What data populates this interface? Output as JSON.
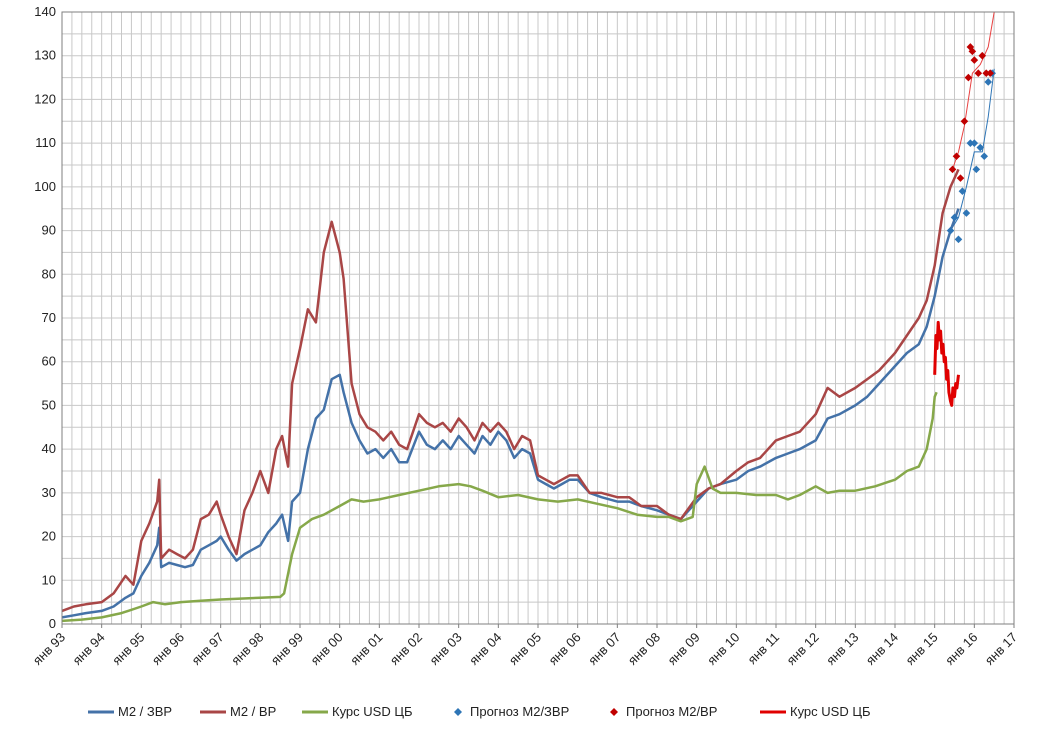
{
  "chart_data": {
    "type": "line",
    "title": "",
    "xlabel": "",
    "ylabel": "",
    "ylim": [
      0,
      140
    ],
    "yticks": [
      0,
      10,
      20,
      30,
      40,
      50,
      60,
      70,
      80,
      90,
      100,
      110,
      120,
      130,
      140
    ],
    "xlim": [
      1993.0,
      2017.0
    ],
    "xtick_labels": [
      "янв 93",
      "янв 94",
      "янв 95",
      "янв 96",
      "янв 97",
      "янв 98",
      "янв 99",
      "янв 00",
      "янв 01",
      "янв 02",
      "янв 03",
      "янв 04",
      "янв 05",
      "янв 06",
      "янв 07",
      "янв 08",
      "янв 09",
      "янв 10",
      "янв 11",
      "янв 12",
      "янв 13",
      "янв 14",
      "янв 15",
      "янв 16",
      "янв 17"
    ],
    "grid": true,
    "legend_position": "bottom",
    "series": [
      {
        "name": "М2 / ЗВР",
        "kind": "line",
        "color": "#4472a8",
        "x": [
          1993.0,
          1993.3,
          1993.6,
          1994.0,
          1994.3,
          1994.6,
          1994.8,
          1995.0,
          1995.2,
          1995.4,
          1995.45,
          1995.5,
          1995.7,
          1995.9,
          1996.1,
          1996.3,
          1996.5,
          1996.7,
          1996.9,
          1997.0,
          1997.2,
          1997.4,
          1997.6,
          1997.8,
          1998.0,
          1998.2,
          1998.4,
          1998.55,
          1998.7,
          1998.8,
          1999.0,
          1999.2,
          1999.4,
          1999.6,
          1999.8,
          2000.0,
          2000.1,
          2000.3,
          2000.5,
          2000.7,
          2000.9,
          2001.1,
          2001.3,
          2001.5,
          2001.7,
          2002.0,
          2002.2,
          2002.4,
          2002.6,
          2002.8,
          2003.0,
          2003.2,
          2003.4,
          2003.6,
          2003.8,
          2004.0,
          2004.2,
          2004.4,
          2004.6,
          2004.8,
          2005.0,
          2005.2,
          2005.4,
          2005.6,
          2005.8,
          2006.0,
          2006.3,
          2006.6,
          2007.0,
          2007.3,
          2007.6,
          2008.0,
          2008.3,
          2008.6,
          2009.0,
          2009.3,
          2009.6,
          2010.0,
          2010.3,
          2010.6,
          2011.0,
          2011.3,
          2011.6,
          2012.0,
          2012.3,
          2012.6,
          2013.0,
          2013.3,
          2013.6,
          2014.0,
          2014.3,
          2014.6,
          2014.8,
          2015.0,
          2015.2,
          2015.4,
          2015.6
        ],
        "y": [
          1.5,
          2,
          2.5,
          3,
          4,
          6,
          7,
          11,
          14,
          18,
          22,
          13,
          14,
          13.5,
          13,
          13.5,
          17,
          18,
          19,
          20,
          17,
          14.5,
          16,
          17,
          18,
          21,
          23,
          25,
          19,
          28,
          30,
          40,
          47,
          49,
          56,
          57,
          53,
          46,
          42,
          39,
          40,
          38,
          40,
          37,
          37,
          44,
          41,
          40,
          42,
          40,
          43,
          41,
          39,
          43,
          41,
          44,
          42,
          38,
          40,
          39,
          33,
          32,
          31,
          32,
          33,
          33,
          30,
          29,
          28,
          28,
          27,
          26,
          25,
          24,
          28,
          31,
          32,
          33,
          35,
          36,
          38,
          39,
          40,
          42,
          47,
          48,
          50,
          52,
          55,
          59,
          62,
          64,
          68,
          75,
          84,
          90,
          95
        ]
      },
      {
        "name": "М2 / ВР",
        "kind": "line",
        "color": "#a94646",
        "x": [
          1993.0,
          1993.3,
          1993.6,
          1994.0,
          1994.3,
          1994.6,
          1994.8,
          1995.0,
          1995.2,
          1995.4,
          1995.45,
          1995.5,
          1995.7,
          1995.9,
          1996.1,
          1996.3,
          1996.5,
          1996.7,
          1996.9,
          1997.0,
          1997.2,
          1997.4,
          1997.6,
          1997.8,
          1998.0,
          1998.2,
          1998.4,
          1998.55,
          1998.7,
          1998.8,
          1999.0,
          1999.2,
          1999.4,
          1999.6,
          1999.8,
          2000.0,
          2000.1,
          2000.3,
          2000.5,
          2000.7,
          2000.9,
          2001.1,
          2001.3,
          2001.5,
          2001.7,
          2002.0,
          2002.2,
          2002.4,
          2002.6,
          2002.8,
          2003.0,
          2003.2,
          2003.4,
          2003.6,
          2003.8,
          2004.0,
          2004.2,
          2004.4,
          2004.6,
          2004.8,
          2005.0,
          2005.2,
          2005.4,
          2005.6,
          2005.8,
          2006.0,
          2006.3,
          2006.6,
          2007.0,
          2007.3,
          2007.6,
          2008.0,
          2008.3,
          2008.6,
          2009.0,
          2009.3,
          2009.6,
          2010.0,
          2010.3,
          2010.6,
          2011.0,
          2011.3,
          2011.6,
          2012.0,
          2012.3,
          2012.6,
          2013.0,
          2013.3,
          2013.6,
          2014.0,
          2014.3,
          2014.6,
          2014.8,
          2015.0,
          2015.2,
          2015.4,
          2015.6
        ],
        "y": [
          3,
          4,
          4.5,
          5,
          7,
          11,
          9,
          19,
          23,
          28,
          33,
          15,
          17,
          16,
          15,
          17,
          24,
          25,
          28,
          25,
          20,
          16,
          26,
          30,
          35,
          30,
          40,
          43,
          36,
          55,
          63,
          72,
          69,
          85,
          92,
          85,
          79,
          55,
          48,
          45,
          44,
          42,
          44,
          41,
          40,
          48,
          46,
          45,
          46,
          44,
          47,
          45,
          42,
          46,
          44,
          46,
          44,
          40,
          43,
          42,
          34,
          33,
          32,
          33,
          34,
          34,
          30,
          30,
          29,
          29,
          27,
          27,
          25,
          24,
          29,
          31,
          32,
          35,
          37,
          38,
          42,
          43,
          44,
          48,
          54,
          52,
          54,
          56,
          58,
          62,
          66,
          70,
          74,
          82,
          94,
          100,
          104
        ]
      },
      {
        "name": "Курс USD ЦБ",
        "kind": "line",
        "color": "#86a84a",
        "x": [
          1993.0,
          1993.5,
          1994.0,
          1994.5,
          1995.0,
          1995.3,
          1995.6,
          1996.0,
          1996.5,
          1997.0,
          1997.5,
          1998.0,
          1998.5,
          1998.6,
          1998.8,
          1999.0,
          1999.3,
          1999.6,
          2000.0,
          2000.3,
          2000.6,
          2001.0,
          2001.5,
          2002.0,
          2002.5,
          2003.0,
          2003.3,
          2003.6,
          2004.0,
          2004.5,
          2005.0,
          2005.5,
          2006.0,
          2006.5,
          2007.0,
          2007.5,
          2008.0,
          2008.3,
          2008.6,
          2008.9,
          2009.0,
          2009.2,
          2009.4,
          2009.6,
          2010.0,
          2010.5,
          2011.0,
          2011.3,
          2011.6,
          2012.0,
          2012.3,
          2012.6,
          2013.0,
          2013.5,
          2014.0,
          2014.3,
          2014.6,
          2014.8,
          2014.95,
          2015.0,
          2015.05
        ],
        "y": [
          0.7,
          1,
          1.5,
          2.5,
          4,
          5,
          4.5,
          5,
          5.3,
          5.6,
          5.8,
          6,
          6.2,
          7,
          16,
          22,
          24,
          25,
          27,
          28.5,
          28,
          28.5,
          29.5,
          30.5,
          31.5,
          32,
          31.5,
          30.5,
          29,
          29.5,
          28.5,
          28,
          28.5,
          27.5,
          26.5,
          25,
          24.5,
          24.5,
          23.5,
          24.5,
          32,
          36,
          31,
          30,
          30,
          29.5,
          29.5,
          28.5,
          29.5,
          31.5,
          30,
          30.5,
          30.5,
          31.5,
          33,
          35,
          36,
          40,
          47,
          52,
          53
        ]
      },
      {
        "name": "Прогноз М2/ЗВР",
        "kind": "scatter",
        "color": "#2e75b6",
        "x": [
          2015.4,
          2015.5,
          2015.6,
          2015.7,
          2015.8,
          2015.9,
          2016.0,
          2016.05,
          2016.15,
          2016.25,
          2016.35,
          2016.45
        ],
        "y": [
          90,
          93,
          88,
          99,
          94,
          110,
          110,
          104,
          109,
          107,
          124,
          126
        ]
      },
      {
        "name": "Прогноз М2/ВР",
        "kind": "scatter",
        "color": "#c00000",
        "x": [
          2015.45,
          2015.55,
          2015.65,
          2015.75,
          2015.85,
          2015.9,
          2015.95,
          2016.0,
          2016.1,
          2016.2,
          2016.3,
          2016.4
        ],
        "y": [
          104,
          107,
          102,
          115,
          125,
          132,
          131,
          129,
          126,
          130,
          126,
          126
        ]
      },
      {
        "name": "Курс USD ЦБ",
        "kind": "line",
        "color": "#e00000",
        "x": [
          2015.0,
          2015.03,
          2015.06,
          2015.09,
          2015.12,
          2015.15,
          2015.18,
          2015.21,
          2015.24,
          2015.27,
          2015.3,
          2015.33,
          2015.36,
          2015.4,
          2015.43,
          2015.46,
          2015.5,
          2015.53,
          2015.56,
          2015.6
        ],
        "y": [
          57,
          66,
          63,
          69,
          65,
          67,
          62,
          64,
          60,
          61,
          56,
          58,
          53,
          51,
          50,
          54,
          52,
          55,
          54,
          57
        ]
      }
    ],
    "forecast_guides": [
      {
        "color": "#2e75b6",
        "x": [
          2015.4,
          2015.6,
          2015.8,
          2016.0,
          2016.2,
          2016.35,
          2016.5
        ],
        "y": [
          90,
          93,
          100,
          108,
          108,
          116,
          127
        ]
      },
      {
        "color": "#e84040",
        "x": [
          2015.45,
          2015.6,
          2015.75,
          2015.95,
          2016.15,
          2016.35,
          2016.5
        ],
        "y": [
          104,
          108,
          114,
          126,
          128,
          132,
          141
        ]
      }
    ],
    "legend": [
      {
        "label": "М2 / ЗВР",
        "color": "#4472a8",
        "marker": "line"
      },
      {
        "label": "М2 / ВР",
        "color": "#a94646",
        "marker": "line"
      },
      {
        "label": "Курс USD ЦБ",
        "color": "#86a84a",
        "marker": "line"
      },
      {
        "label": "Прогноз М2/ЗВР",
        "color": "#2e75b6",
        "marker": "diamond"
      },
      {
        "label": "Прогноз М2/ВР",
        "color": "#c00000",
        "marker": "diamond"
      },
      {
        "label": "Курс USD ЦБ",
        "color": "#e00000",
        "marker": "line"
      }
    ]
  }
}
